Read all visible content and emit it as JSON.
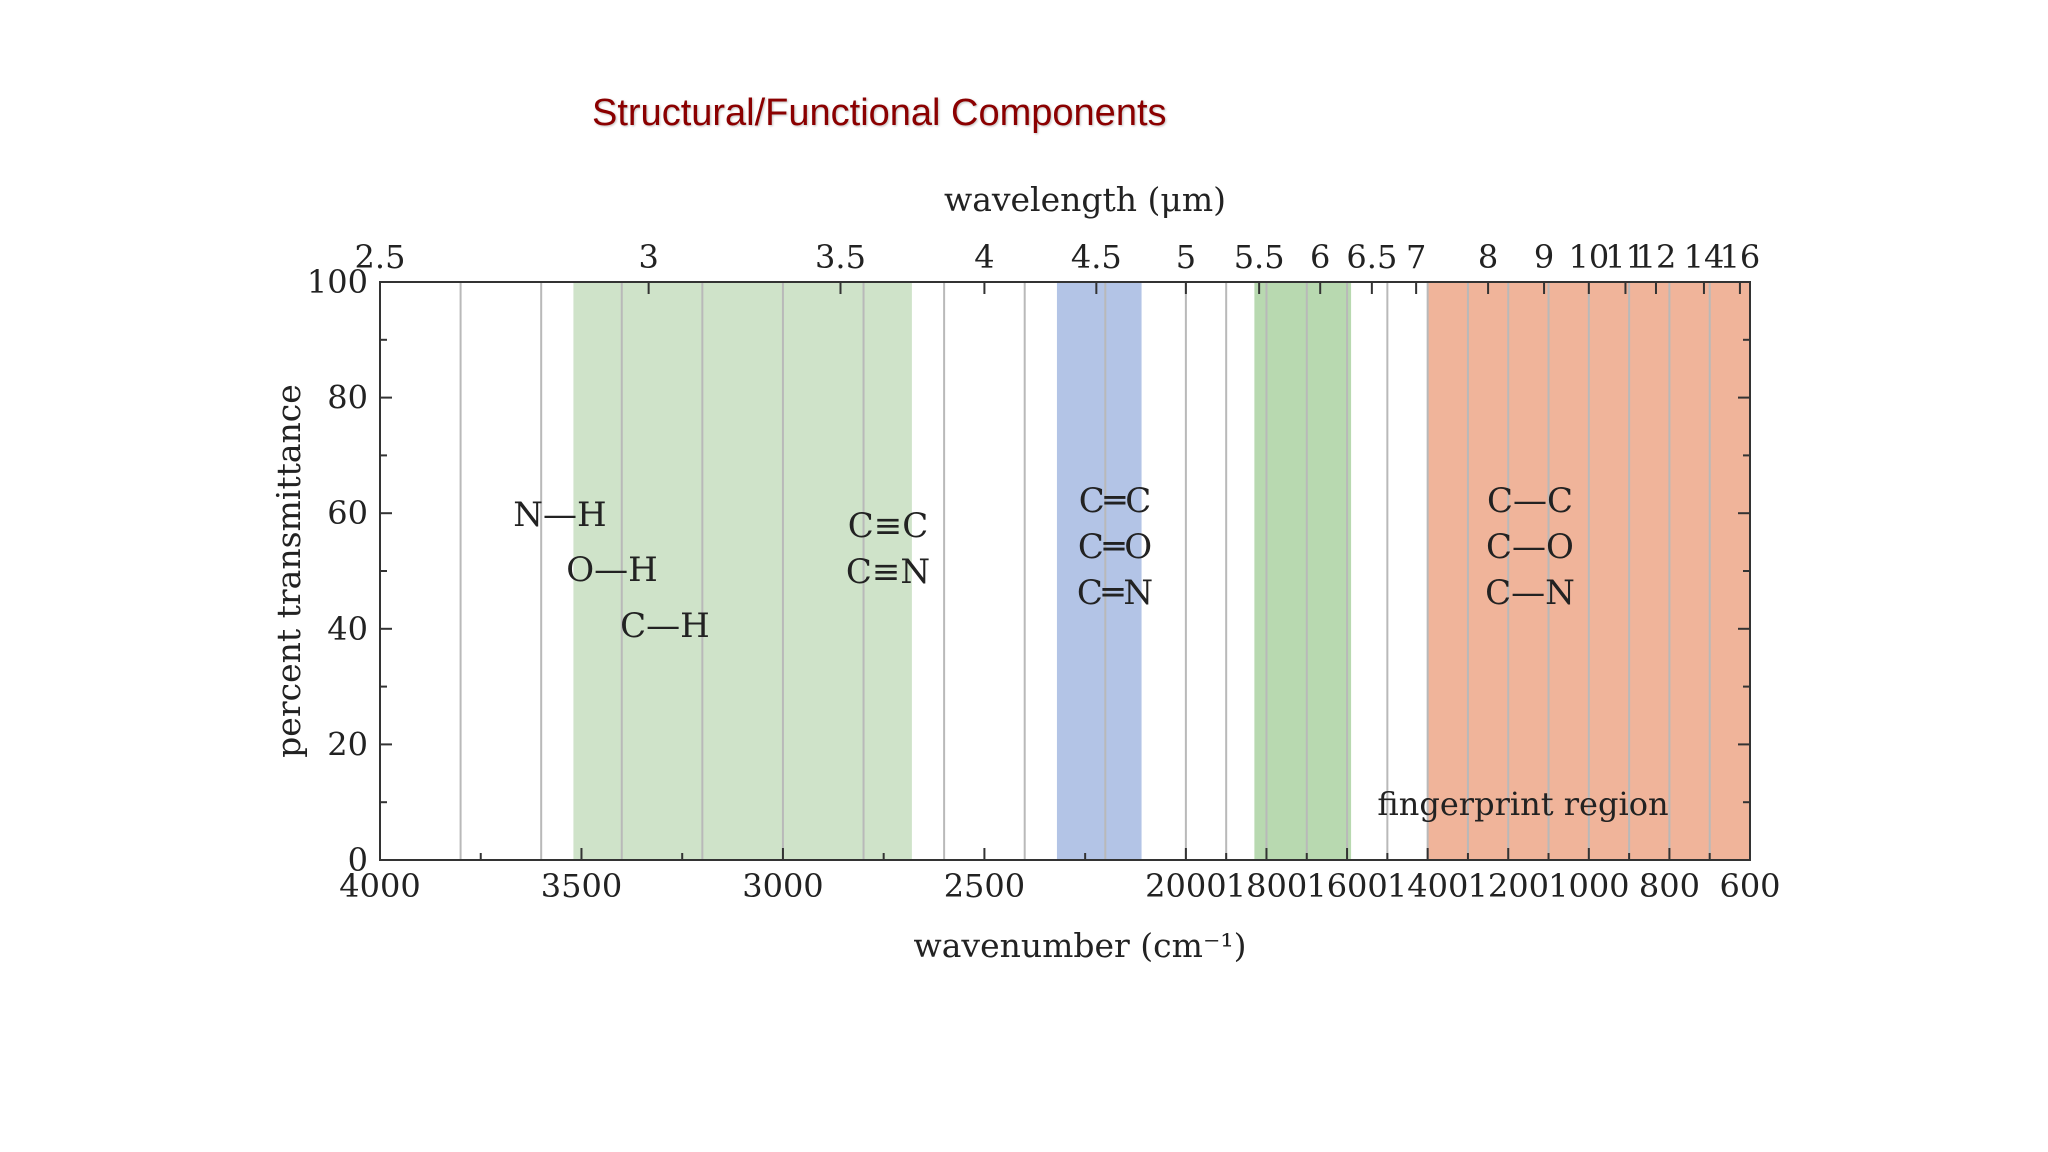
{
  "slide": {
    "title": "Structural/Functional Components",
    "title_color": "#8b0000"
  },
  "chart_data": {
    "type": "area",
    "title": "",
    "xlabel": "wavenumber (cm⁻¹)",
    "ylabel": "percent transmittance",
    "top_axis_label": "wavelength (μm)",
    "xlim": [
      4000,
      600
    ],
    "ylim": [
      0,
      100
    ],
    "x_ticks": [
      4000,
      3500,
      3000,
      2500,
      2000,
      1800,
      1600,
      1400,
      1200,
      1000,
      800,
      600
    ],
    "x_tick_labels": [
      "4000",
      "3500",
      "3000",
      "2500",
      "2000",
      "1800",
      "1600",
      "1400",
      "1200",
      "1000",
      "800",
      "600"
    ],
    "y_ticks": [
      0,
      20,
      40,
      60,
      80,
      100
    ],
    "y_tick_labels": [
      "0",
      "20",
      "40",
      "60",
      "80",
      "100"
    ],
    "top_ticks": [
      2.5,
      3,
      3.5,
      4,
      4.5,
      5,
      5.5,
      6,
      6.5,
      7,
      8,
      9,
      10,
      11,
      12,
      14,
      16
    ],
    "top_tick_labels": [
      "2.5",
      "3",
      "3.5",
      "4",
      "4.5",
      "5",
      "5.5",
      "6",
      "6.5",
      "7",
      "8",
      "9",
      "10",
      "11",
      "12",
      "14",
      "16"
    ],
    "grid": true,
    "regions": [
      {
        "from": 3520,
        "to": 2680,
        "color": "#cfe3c9",
        "labels": [
          "N—H",
          "O—H",
          "C—H"
        ]
      },
      {
        "from": 2320,
        "to": 2110,
        "color": "#b3c4e6",
        "labels": [
          "C≡C",
          "C≡N"
        ]
      },
      {
        "from": 1830,
        "to": 1590,
        "color": "#b8d9b0",
        "labels": [
          "C═C",
          "C═O",
          "C═N"
        ]
      },
      {
        "from": 1400,
        "to": 600,
        "color": "#f0b49a",
        "labels": [
          "C—C",
          "C—O",
          "C—N"
        ]
      }
    ],
    "annotations": [
      "fingerprint region"
    ]
  }
}
